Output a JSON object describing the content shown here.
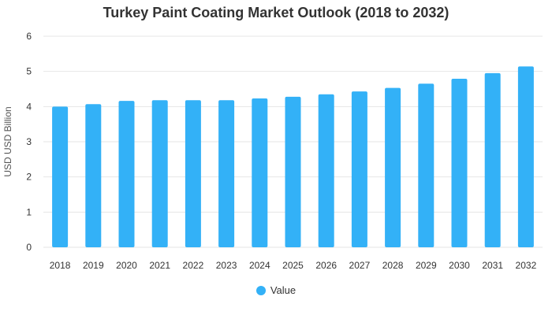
{
  "chart_data": {
    "type": "bar",
    "title": "Turkey Paint Coating Market Outlook (2018 to 2032)",
    "ylabel": "USD USD Billion",
    "xlabel": "",
    "categories": [
      "2018",
      "2019",
      "2020",
      "2021",
      "2022",
      "2023",
      "2024",
      "2025",
      "2026",
      "2027",
      "2028",
      "2029",
      "2030",
      "2031",
      "2032"
    ],
    "series": [
      {
        "name": "Value",
        "values": [
          4.0,
          4.07,
          4.16,
          4.18,
          4.18,
          4.18,
          4.23,
          4.28,
          4.35,
          4.43,
          4.53,
          4.65,
          4.79,
          4.95,
          5.14
        ]
      }
    ],
    "ylim": [
      0,
      6
    ],
    "yticks": [
      "0",
      "1",
      "2",
      "3",
      "4",
      "5",
      "6"
    ],
    "grid": true,
    "legend_position": "bottom"
  },
  "colors": {
    "bar": "#33B1F7",
    "grid": "#E6E6E6",
    "tick_text": "#333333"
  }
}
